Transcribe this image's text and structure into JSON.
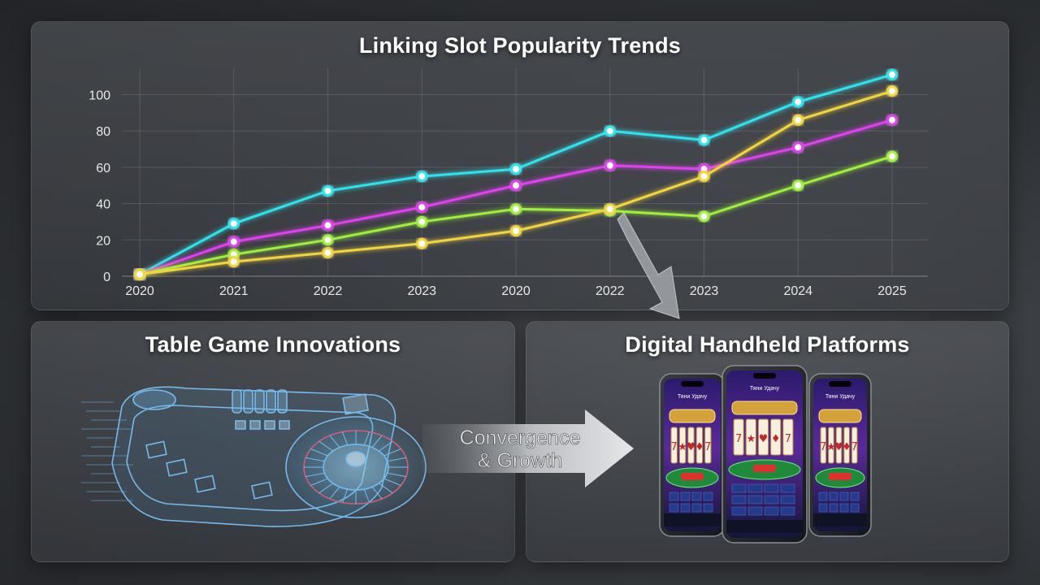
{
  "panels": {
    "chart_title": "Linking Slot Popularity Trends",
    "table_title": "Table Game Innovations",
    "device_title": "Digital Handheld Platforms"
  },
  "arrow_label": {
    "line1": "Convergence",
    "line2": "& Growth"
  },
  "chart_data": {
    "type": "line",
    "title": "Linking Slot Popularity Trends",
    "xlabel": "",
    "ylabel": "",
    "categories": [
      "2020",
      "2021",
      "2022",
      "2023",
      "2020",
      "2022",
      "2023",
      "2024",
      "2025"
    ],
    "yticks": [
      0,
      20,
      40,
      60,
      80,
      100
    ],
    "ylim": [
      0,
      112
    ],
    "grid": true,
    "legend": "none",
    "series": [
      {
        "color": "#2fe3ee",
        "values": [
          1,
          29,
          47,
          55,
          59,
          80,
          75,
          96,
          111
        ]
      },
      {
        "color": "#e040f0",
        "values": [
          1,
          19,
          28,
          38,
          50,
          61,
          59,
          71,
          86
        ]
      },
      {
        "color": "#9ef03a",
        "values": [
          1,
          12,
          20,
          30,
          37,
          36,
          33,
          50,
          66
        ]
      },
      {
        "color": "#f2d43c",
        "values": [
          1,
          8,
          13,
          18,
          25,
          37,
          55,
          86,
          102
        ]
      }
    ]
  },
  "devices": {
    "screen_caption": "Тяни Удачу",
    "reel_symbols": [
      "7",
      "★",
      "♥",
      "♦",
      "7"
    ]
  }
}
